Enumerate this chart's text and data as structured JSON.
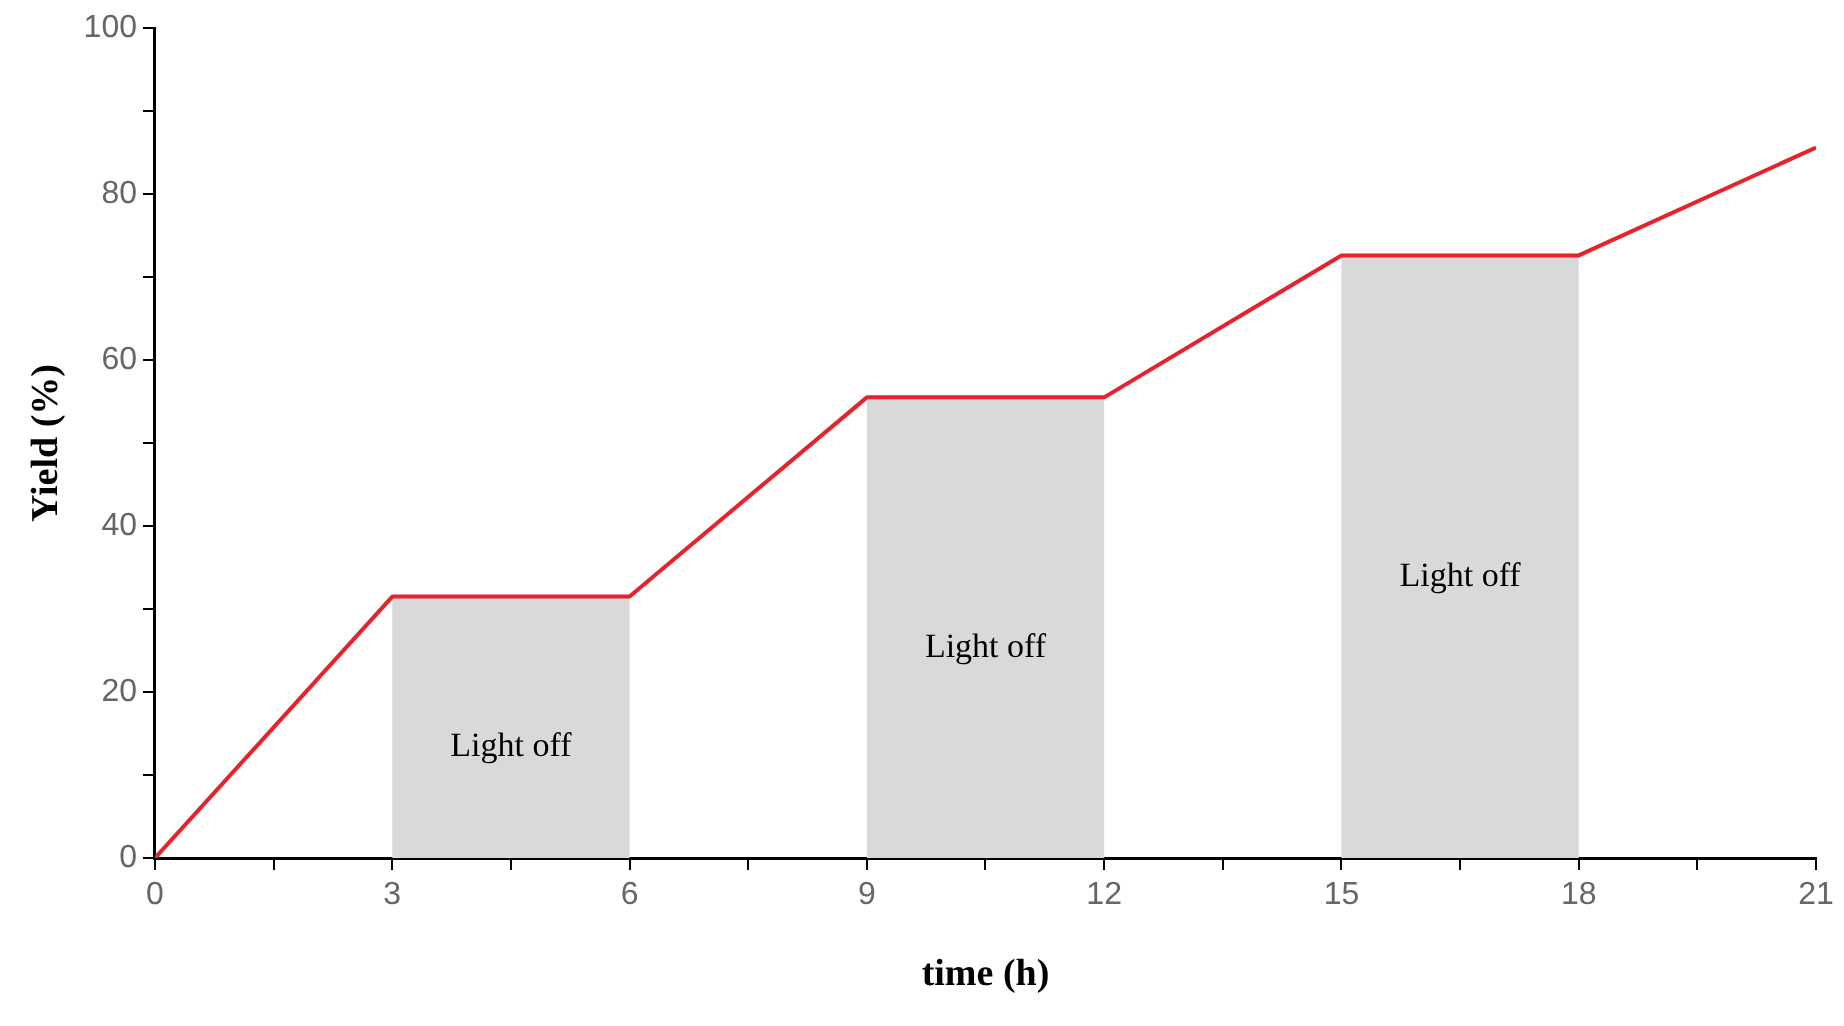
{
  "chart_data": {
    "type": "line",
    "xlabel": "time (h)",
    "ylabel": "Yield (%)",
    "x": [
      0,
      3,
      6,
      9,
      12,
      15,
      18,
      21
    ],
    "series": [
      {
        "color": "#e8212a",
        "values": [
          0,
          31.5,
          31.5,
          55.5,
          55.5,
          72.6,
          72.6,
          85.6
        ]
      }
    ],
    "xlim": [
      0,
      21
    ],
    "ylim": [
      0,
      100
    ],
    "xticks": [
      0,
      {
        "value": 1.5,
        "label": null
      },
      3,
      {
        "value": 4.5,
        "label": null
      },
      6,
      {
        "value": 7.5,
        "label": null
      },
      9,
      {
        "value": 10.5,
        "label": null
      },
      12,
      {
        "value": 13.5,
        "label": null
      },
      15,
      {
        "value": 16.5,
        "label": null
      },
      18,
      {
        "value": 19.5,
        "label": null
      },
      21
    ],
    "yticks": [
      0,
      {
        "value": 10,
        "label": null
      },
      20,
      {
        "value": 30,
        "label": null
      },
      40,
      {
        "value": 50,
        "label": null
      },
      60,
      {
        "value": 70,
        "label": null
      },
      80,
      {
        "value": 90,
        "label": null
      },
      100
    ],
    "bands": [
      {
        "axis": "x",
        "from": 3,
        "to": 6,
        "label": "Light off",
        "color": "#d9d9d9"
      },
      {
        "axis": "x",
        "from": 9,
        "to": 12,
        "label": "Light off",
        "color": "#d9d9d9"
      },
      {
        "axis": "x",
        "from": 15,
        "to": 18,
        "label": "Light off",
        "color": "#d9d9d9"
      }
    ],
    "grid": false,
    "legend": false,
    "marker": "none",
    "line_style": "solid"
  }
}
